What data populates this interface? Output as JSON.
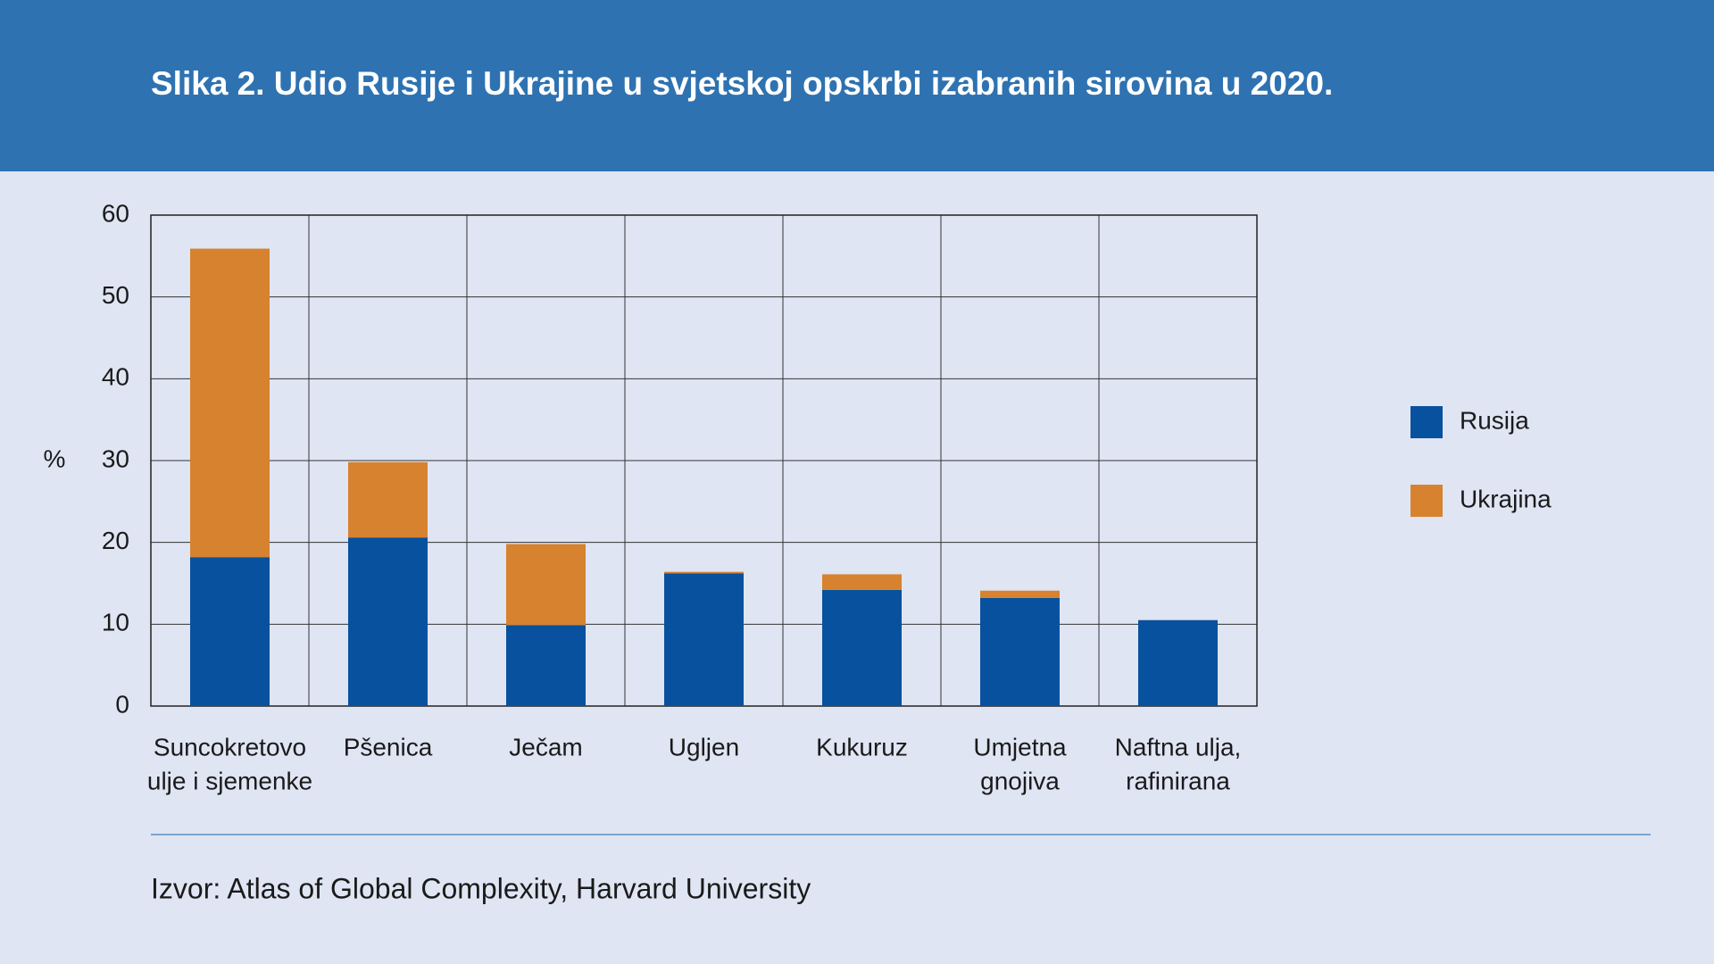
{
  "chart_data": {
    "type": "stacked_bar",
    "title": "Slika 2. Udio Rusije i Ukrajine u svjetskoj opskrbi izabranih sirovina u 2020.",
    "y_label": "%",
    "categories": [
      [
        "Suncokretovo",
        "ulje i sjemenke"
      ],
      [
        "Pšenica"
      ],
      [
        "Ječam"
      ],
      [
        "Ugljen"
      ],
      [
        "Kukuruz"
      ],
      [
        "Umjetna",
        "gnojiva"
      ],
      [
        "Naftna ulja,",
        "rafinirana"
      ]
    ],
    "series": [
      {
        "name": "Rusija",
        "color": "#07519e",
        "values": [
          18.2,
          20.6,
          9.9,
          16.2,
          14.2,
          13.2,
          10.5
        ]
      },
      {
        "name": "Ukrajina",
        "color": "#d7822e",
        "values": [
          37.7,
          9.2,
          9.9,
          0.2,
          1.9,
          0.9,
          0
        ]
      }
    ],
    "ylim": [
      0,
      60
    ],
    "yticks": [
      0,
      10,
      20,
      30,
      40,
      50,
      60
    ],
    "grid": true,
    "source": "Izvor: Atlas of Global Complexity, Harvard University"
  }
}
